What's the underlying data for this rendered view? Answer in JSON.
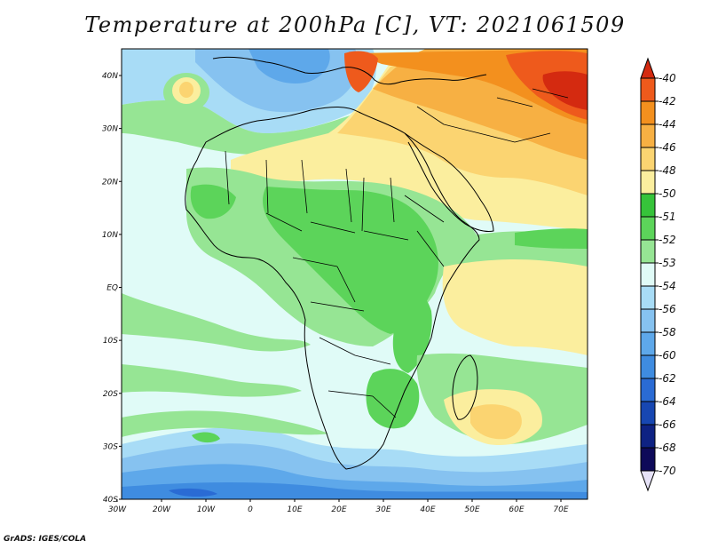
{
  "title": "Temperature at 200hPa [C], VT: 2021061509",
  "footer": "GrADS: IGES/COLA",
  "map": {
    "x_ticks": [
      "30W",
      "20W",
      "10W",
      "0",
      "10E",
      "20E",
      "30E",
      "40E",
      "50E",
      "60E",
      "70E"
    ],
    "y_ticks": [
      "40N",
      "30N",
      "20N",
      "10N",
      "EQ",
      "10S",
      "20S",
      "30S",
      "40S"
    ]
  },
  "colorbar": {
    "levels": [
      "-40",
      "-42",
      "-44",
      "-46",
      "-48",
      "-50",
      "-51",
      "-52",
      "-53",
      "-54",
      "-56",
      "-58",
      "-60",
      "-62",
      "-64",
      "-66",
      "-68",
      "-70"
    ],
    "colors": [
      "#d42a10",
      "#ee5a1c",
      "#f3901e",
      "#f7b043",
      "#fbd471",
      "#fbee9e",
      "#36c33a",
      "#5cd45a",
      "#96e594",
      "#e0fbf7",
      "#a8dcf6",
      "#86c2f0",
      "#5ea8ea",
      "#3f8ce0",
      "#2a6bd4",
      "#1747b2",
      "#0e2283",
      "#0e0a59",
      "#e6e2f7"
    ]
  },
  "palette": {
    "coast": "#000000",
    "background": "#ffffff"
  }
}
